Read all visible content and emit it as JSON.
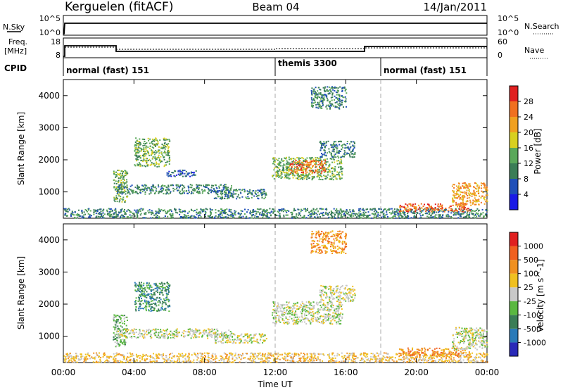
{
  "header": {
    "station": "Kerguelen (fitACF)",
    "beam": "Beam 04",
    "date": "14/Jan/2011"
  },
  "nsky_panel": {
    "left_label": "N.Sky",
    "left_ticks": [
      "10^5",
      "10^0"
    ],
    "right_label": "N.Search",
    "right_ticks": [
      "10^5",
      "10^0"
    ]
  },
  "freq_panel": {
    "left_label_1": "Freq.",
    "left_label_2": "[MHz]",
    "left_ticks": [
      "18",
      "8"
    ],
    "right_label": "Nave",
    "right_ticks": [
      "60",
      "0"
    ]
  },
  "cpid_panel": {
    "label": "CPID",
    "segments": [
      {
        "name": "normal (fast) 151",
        "start_h": 0
      },
      {
        "name": "themis 3300",
        "start_h": 12
      },
      {
        "name": "normal (fast) 151",
        "start_h": 18
      }
    ]
  },
  "x_axis": {
    "title": "Time UT",
    "ticks": [
      "00:00",
      "04:00",
      "08:00",
      "12:00",
      "16:00",
      "20:00",
      "00:00"
    ],
    "range_hours": [
      0,
      24
    ]
  },
  "chart_data": [
    {
      "type": "heatmap",
      "name": "power",
      "ylabel": "Slant Range [km]",
      "yticks": [
        "1000",
        "2000",
        "3000",
        "4000"
      ],
      "ylim": [
        180,
        4500
      ],
      "colorbar_label": "Power [dB]",
      "colorbar_ticks": [
        "4",
        "8",
        "12",
        "16",
        "20",
        "24",
        "28"
      ],
      "colorbar_colors": [
        "#1a1ae6",
        "#1f4fb8",
        "#3a7d56",
        "#5aa85a",
        "#d8d020",
        "#f0a020",
        "#f07020",
        "#e02020"
      ],
      "regions": [
        {
          "t0": 0.0,
          "t1": 24.0,
          "r0": 200,
          "r1": 500,
          "level": 2
        },
        {
          "t0": 2.8,
          "t1": 3.6,
          "r0": 700,
          "r1": 1700,
          "level": 3
        },
        {
          "t0": 3.0,
          "t1": 9.5,
          "r0": 950,
          "r1": 1250,
          "level": 2
        },
        {
          "t0": 4.0,
          "t1": 6.0,
          "r0": 1800,
          "r1": 2700,
          "level": 3
        },
        {
          "t0": 5.8,
          "t1": 7.5,
          "r0": 1500,
          "r1": 1700,
          "level": 1
        },
        {
          "t0": 8.5,
          "t1": 11.5,
          "r0": 800,
          "r1": 1100,
          "level": 2
        },
        {
          "t0": 11.8,
          "t1": 15.8,
          "r0": 1400,
          "r1": 2100,
          "level": 3
        },
        {
          "t0": 12.8,
          "t1": 14.8,
          "r0": 1600,
          "r1": 2000,
          "level": 6
        },
        {
          "t0": 14.5,
          "t1": 16.5,
          "r0": 2100,
          "r1": 2600,
          "level": 2
        },
        {
          "t0": 14.0,
          "t1": 16.0,
          "r0": 3600,
          "r1": 4300,
          "level": 2
        },
        {
          "t0": 19.0,
          "t1": 23.0,
          "r0": 400,
          "r1": 650,
          "level": 6
        },
        {
          "t0": 22.0,
          "t1": 24.0,
          "r0": 600,
          "r1": 1300,
          "level": 5
        }
      ]
    },
    {
      "type": "heatmap",
      "name": "velocity",
      "ylabel": "Slant Range [km]",
      "yticks": [
        "1000",
        "2000",
        "3000",
        "4000"
      ],
      "ylim": [
        180,
        4500
      ],
      "colorbar_label": "Velocity [m s^-1]",
      "colorbar_ticks": [
        "1000",
        "500",
        "100",
        "25",
        "-25",
        "-100",
        "-500",
        "-1000"
      ],
      "colorbar_colors": [
        "#2a2ab8",
        "#2a7ab8",
        "#3a7d56",
        "#5ab840",
        "#c8c8c8",
        "#f0c020",
        "#f09020",
        "#f06020",
        "#e02020"
      ],
      "regions": [
        {
          "t0": 0.0,
          "t1": 24.0,
          "r0": 200,
          "r1": 500,
          "level": 5
        },
        {
          "t0": 2.8,
          "t1": 3.6,
          "r0": 700,
          "r1": 1700,
          "level": 3
        },
        {
          "t0": 3.0,
          "t1": 9.5,
          "r0": 950,
          "r1": 1250,
          "level": 4
        },
        {
          "t0": 4.0,
          "t1": 6.0,
          "r0": 1800,
          "r1": 2700,
          "level": 2
        },
        {
          "t0": 8.5,
          "t1": 11.5,
          "r0": 800,
          "r1": 1100,
          "level": 4
        },
        {
          "t0": 11.8,
          "t1": 15.8,
          "r0": 1400,
          "r1": 2100,
          "level": 4
        },
        {
          "t0": 14.5,
          "t1": 16.5,
          "r0": 2100,
          "r1": 2600,
          "level": 4
        },
        {
          "t0": 14.0,
          "t1": 16.0,
          "r0": 3600,
          "r1": 4300,
          "level": 6
        },
        {
          "t0": 19.0,
          "t1": 23.0,
          "r0": 400,
          "r1": 650,
          "level": 6
        },
        {
          "t0": 22.0,
          "t1": 24.0,
          "r0": 600,
          "r1": 1300,
          "level": 4
        }
      ]
    }
  ]
}
